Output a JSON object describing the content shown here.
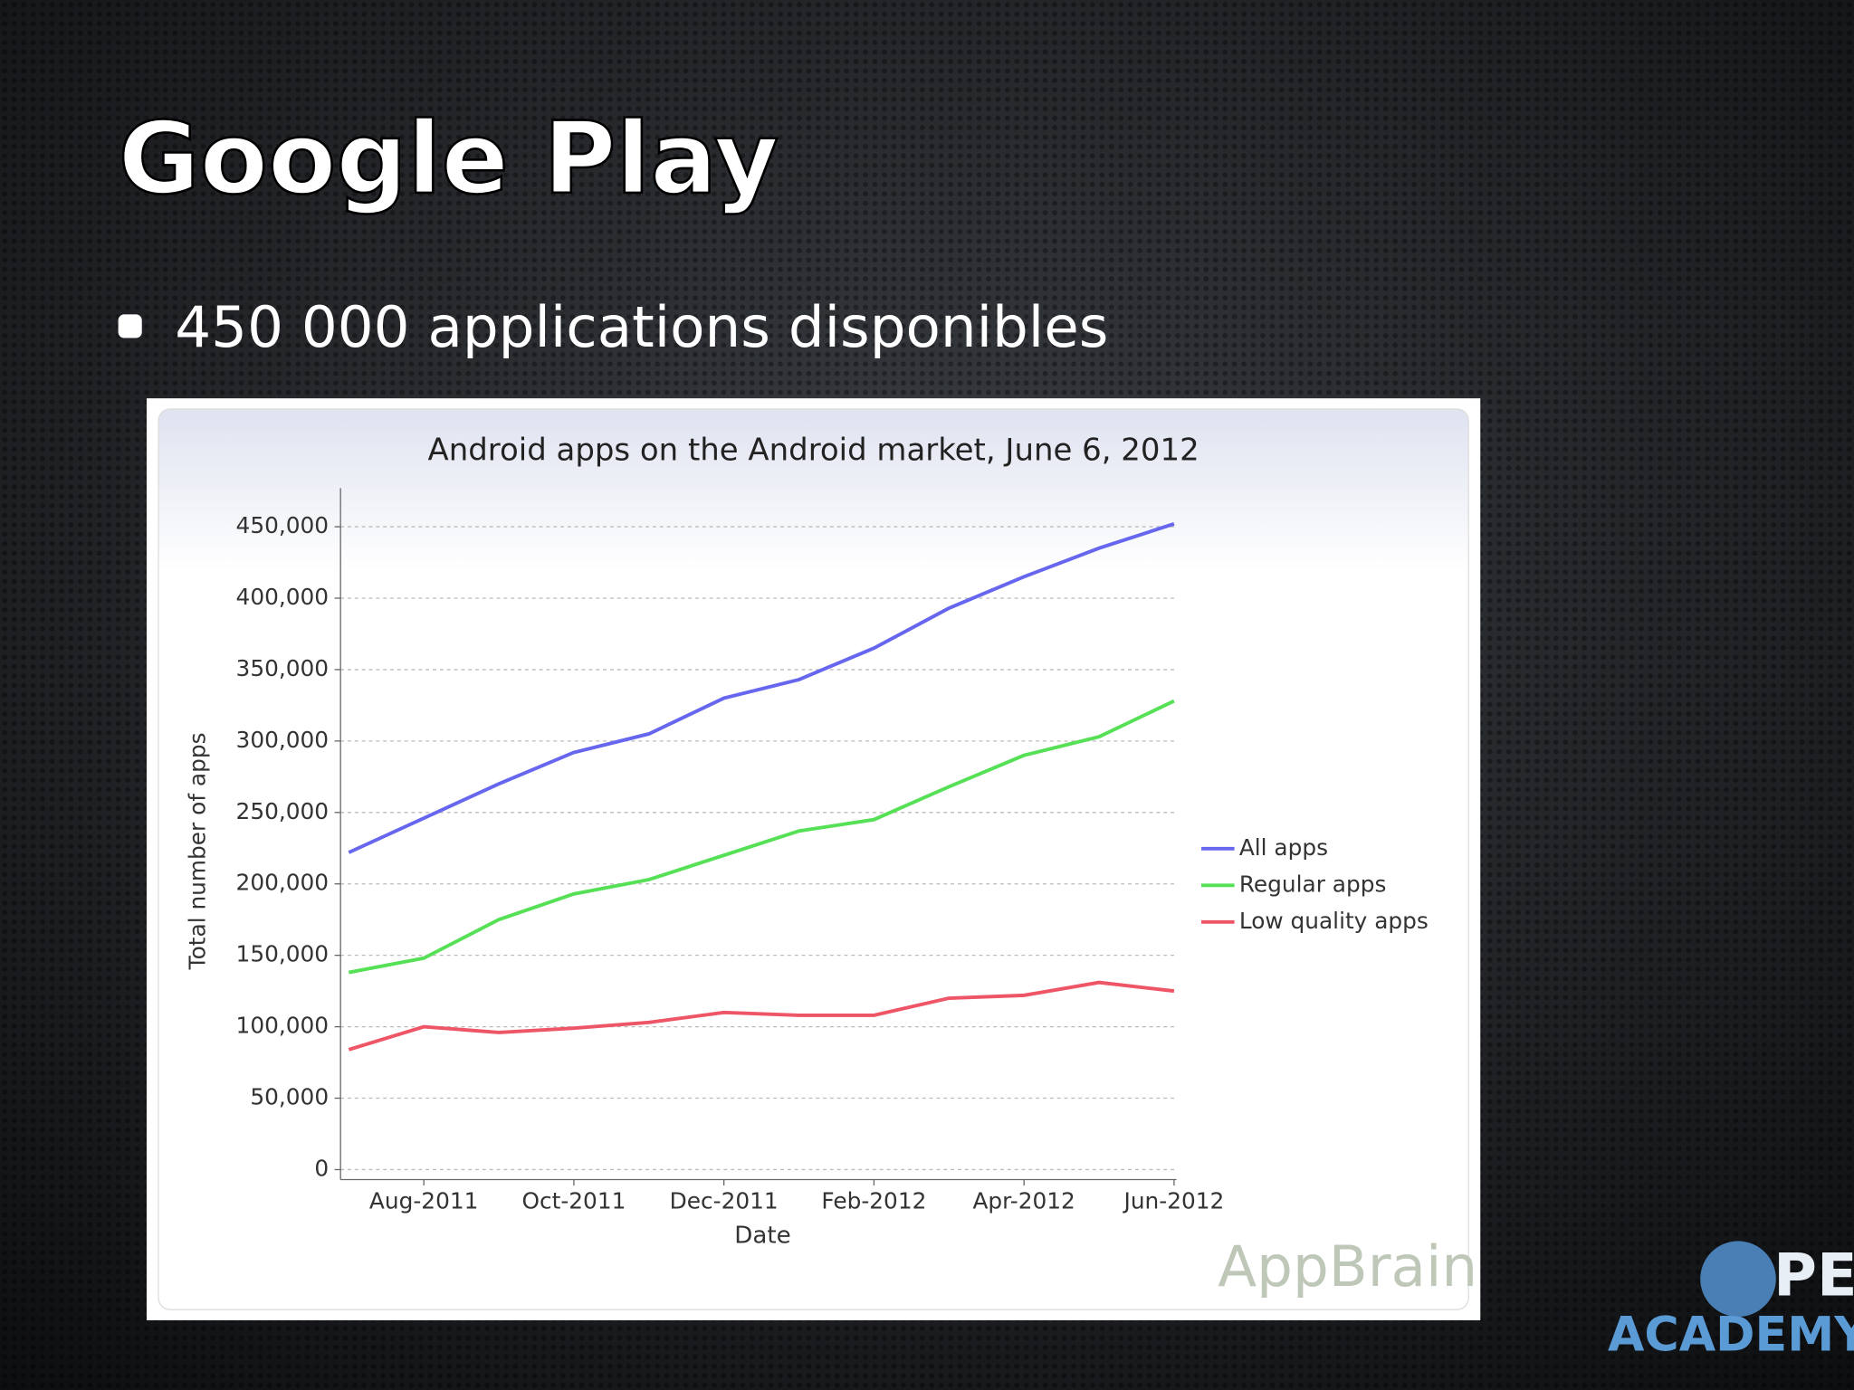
{
  "slide": {
    "title": "Google Play",
    "bullet": "450 000 applications disponibles",
    "logo_top": "PEN",
    "logo_bottom": "ACADEMY"
  },
  "chart_data": {
    "type": "line",
    "title": "Android apps on the Android market, June 6, 2012",
    "x_label": "Date",
    "y_label": "Total number of apps",
    "watermark": "AppBrain",
    "x": [
      null,
      "Aug-2011",
      null,
      "Oct-2011",
      null,
      "Dec-2011",
      null,
      "Feb-2012",
      null,
      "Apr-2012",
      null,
      "Jun-2012"
    ],
    "series": [
      {
        "name": "All apps",
        "color": "#6666ee",
        "values": [
          222000,
          246000,
          270000,
          292000,
          305000,
          330000,
          343000,
          365000,
          393000,
          415000,
          435000,
          452000
        ]
      },
      {
        "name": "Regular apps",
        "color": "#55e055",
        "values": [
          138000,
          148000,
          175000,
          193000,
          203000,
          220000,
          237000,
          245000,
          268000,
          290000,
          303000,
          328000
        ]
      },
      {
        "name": "Low quality apps",
        "color": "#ee5566",
        "values": [
          84000,
          100000,
          96000,
          99000,
          103000,
          110000,
          108000,
          108000,
          120000,
          122000,
          131000,
          125000
        ]
      }
    ],
    "ylim": [
      -7000,
      477000
    ],
    "yticks": [
      0,
      {
        "value": 50000,
        "label": "50,000"
      },
      {
        "value": 100000,
        "label": "100,000"
      },
      {
        "value": 150000,
        "label": "150,000"
      },
      {
        "value": 200000,
        "label": "200,000"
      },
      {
        "value": 250000,
        "label": "250,000"
      },
      {
        "value": 300000,
        "label": "300,000"
      },
      {
        "value": 350000,
        "label": "350,000"
      },
      {
        "value": 400000,
        "label": "400,000"
      },
      {
        "value": 450000,
        "label": "450,000"
      }
    ],
    "grid": true,
    "legend": "right"
  }
}
